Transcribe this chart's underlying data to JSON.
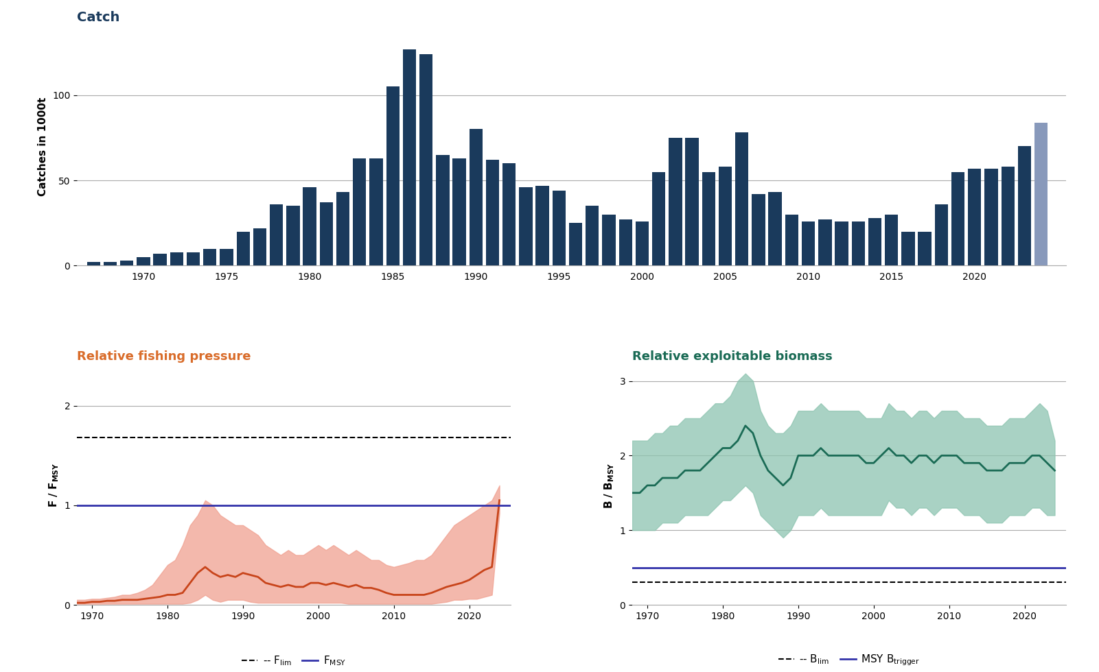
{
  "catch_years": [
    1967,
    1968,
    1969,
    1970,
    1971,
    1972,
    1973,
    1974,
    1975,
    1976,
    1977,
    1978,
    1979,
    1980,
    1981,
    1982,
    1983,
    1984,
    1985,
    1986,
    1987,
    1988,
    1989,
    1990,
    1991,
    1992,
    1993,
    1994,
    1995,
    1996,
    1997,
    1998,
    1999,
    2000,
    2001,
    2002,
    2003,
    2004,
    2005,
    2006,
    2007,
    2008,
    2009,
    2010,
    2011,
    2012,
    2013,
    2014,
    2015,
    2016,
    2017,
    2018,
    2019,
    2020,
    2021,
    2022,
    2023,
    2024
  ],
  "catch_values": [
    2,
    2,
    3,
    5,
    7,
    8,
    8,
    10,
    10,
    20,
    22,
    36,
    35,
    46,
    37,
    43,
    63,
    63,
    105,
    127,
    124,
    65,
    63,
    80,
    62,
    60,
    46,
    47,
    44,
    25,
    35,
    30,
    27,
    26,
    55,
    75,
    75,
    55,
    58,
    78,
    42,
    43,
    30,
    26,
    27,
    26,
    26,
    28,
    30,
    20,
    20,
    36,
    55,
    57,
    57,
    58,
    70,
    84
  ],
  "catch_bar_color": "#1a3a5c",
  "catch_bar_color_last": "#8899bb",
  "catch_title": "Catch",
  "catch_title_color": "#1a3a5c",
  "catch_ylabel": "Catches in 1000t",
  "catch_ylim": [
    0,
    140
  ],
  "catch_yticks": [
    0,
    50,
    100
  ],
  "f_years": [
    1968,
    1969,
    1970,
    1971,
    1972,
    1973,
    1974,
    1975,
    1976,
    1977,
    1978,
    1979,
    1980,
    1981,
    1982,
    1983,
    1984,
    1985,
    1986,
    1987,
    1988,
    1989,
    1990,
    1991,
    1992,
    1993,
    1994,
    1995,
    1996,
    1997,
    1998,
    1999,
    2000,
    2001,
    2002,
    2003,
    2004,
    2005,
    2006,
    2007,
    2008,
    2009,
    2010,
    2011,
    2012,
    2013,
    2014,
    2015,
    2016,
    2017,
    2018,
    2019,
    2020,
    2021,
    2022,
    2023,
    2024
  ],
  "f_mean": [
    0.02,
    0.02,
    0.03,
    0.03,
    0.04,
    0.04,
    0.05,
    0.05,
    0.05,
    0.06,
    0.07,
    0.08,
    0.1,
    0.1,
    0.12,
    0.22,
    0.32,
    0.38,
    0.32,
    0.28,
    0.3,
    0.28,
    0.32,
    0.3,
    0.28,
    0.22,
    0.2,
    0.18,
    0.2,
    0.18,
    0.18,
    0.22,
    0.22,
    0.2,
    0.22,
    0.2,
    0.18,
    0.2,
    0.17,
    0.17,
    0.15,
    0.12,
    0.1,
    0.1,
    0.1,
    0.1,
    0.1,
    0.12,
    0.15,
    0.18,
    0.2,
    0.22,
    0.25,
    0.3,
    0.35,
    0.38,
    1.05
  ],
  "f_upper": [
    0.05,
    0.05,
    0.06,
    0.06,
    0.07,
    0.08,
    0.1,
    0.1,
    0.12,
    0.15,
    0.2,
    0.3,
    0.4,
    0.45,
    0.6,
    0.8,
    0.9,
    1.05,
    1.0,
    0.9,
    0.85,
    0.8,
    0.8,
    0.75,
    0.7,
    0.6,
    0.55,
    0.5,
    0.55,
    0.5,
    0.5,
    0.55,
    0.6,
    0.55,
    0.6,
    0.55,
    0.5,
    0.55,
    0.5,
    0.45,
    0.45,
    0.4,
    0.38,
    0.4,
    0.42,
    0.45,
    0.45,
    0.5,
    0.6,
    0.7,
    0.8,
    0.85,
    0.9,
    0.95,
    1.0,
    1.05,
    1.2
  ],
  "f_lower": [
    0.01,
    0.01,
    0.01,
    0.01,
    0.01,
    0.01,
    0.01,
    0.01,
    0.01,
    0.01,
    0.01,
    0.01,
    0.01,
    0.01,
    0.01,
    0.02,
    0.05,
    0.1,
    0.05,
    0.03,
    0.05,
    0.05,
    0.05,
    0.03,
    0.02,
    0.02,
    0.02,
    0.02,
    0.02,
    0.02,
    0.02,
    0.02,
    0.02,
    0.02,
    0.02,
    0.02,
    0.01,
    0.01,
    0.01,
    0.01,
    0.01,
    0.01,
    0.01,
    0.01,
    0.01,
    0.01,
    0.01,
    0.01,
    0.02,
    0.03,
    0.05,
    0.05,
    0.06,
    0.06,
    0.08,
    0.1,
    0.92
  ],
  "f_title": "Relative fishing pressure",
  "f_title_color": "#d96c2a",
  "f_ylabel": "F / F_MSY",
  "f_flim": 1.68,
  "f_fmsy": 1.0,
  "f_ylim": [
    0,
    2.4
  ],
  "f_yticks": [
    0,
    1,
    2
  ],
  "f_line_color": "#c8441a",
  "f_fill_color": "#f0a090",
  "b_years": [
    1968,
    1969,
    1970,
    1971,
    1972,
    1973,
    1974,
    1975,
    1976,
    1977,
    1978,
    1979,
    1980,
    1981,
    1982,
    1983,
    1984,
    1985,
    1986,
    1987,
    1988,
    1989,
    1990,
    1991,
    1992,
    1993,
    1994,
    1995,
    1996,
    1997,
    1998,
    1999,
    2000,
    2001,
    2002,
    2003,
    2004,
    2005,
    2006,
    2007,
    2008,
    2009,
    2010,
    2011,
    2012,
    2013,
    2014,
    2015,
    2016,
    2017,
    2018,
    2019,
    2020,
    2021,
    2022,
    2023,
    2024
  ],
  "b_mean": [
    1.5,
    1.5,
    1.6,
    1.6,
    1.7,
    1.7,
    1.7,
    1.8,
    1.8,
    1.8,
    1.9,
    2.0,
    2.1,
    2.1,
    2.2,
    2.4,
    2.3,
    2.0,
    1.8,
    1.7,
    1.6,
    1.7,
    2.0,
    2.0,
    2.0,
    2.1,
    2.0,
    2.0,
    2.0,
    2.0,
    2.0,
    1.9,
    1.9,
    2.0,
    2.1,
    2.0,
    2.0,
    1.9,
    2.0,
    2.0,
    1.9,
    2.0,
    2.0,
    2.0,
    1.9,
    1.9,
    1.9,
    1.8,
    1.8,
    1.8,
    1.9,
    1.9,
    1.9,
    2.0,
    2.0,
    1.9,
    1.8
  ],
  "b_upper": [
    2.2,
    2.2,
    2.2,
    2.3,
    2.3,
    2.4,
    2.4,
    2.5,
    2.5,
    2.5,
    2.6,
    2.7,
    2.7,
    2.8,
    3.0,
    3.1,
    3.0,
    2.6,
    2.4,
    2.3,
    2.3,
    2.4,
    2.6,
    2.6,
    2.6,
    2.7,
    2.6,
    2.6,
    2.6,
    2.6,
    2.6,
    2.5,
    2.5,
    2.5,
    2.7,
    2.6,
    2.6,
    2.5,
    2.6,
    2.6,
    2.5,
    2.6,
    2.6,
    2.6,
    2.5,
    2.5,
    2.5,
    2.4,
    2.4,
    2.4,
    2.5,
    2.5,
    2.5,
    2.6,
    2.7,
    2.6,
    2.2
  ],
  "b_lower": [
    1.0,
    1.0,
    1.0,
    1.0,
    1.1,
    1.1,
    1.1,
    1.2,
    1.2,
    1.2,
    1.2,
    1.3,
    1.4,
    1.4,
    1.5,
    1.6,
    1.5,
    1.2,
    1.1,
    1.0,
    0.9,
    1.0,
    1.2,
    1.2,
    1.2,
    1.3,
    1.2,
    1.2,
    1.2,
    1.2,
    1.2,
    1.2,
    1.2,
    1.2,
    1.4,
    1.3,
    1.3,
    1.2,
    1.3,
    1.3,
    1.2,
    1.3,
    1.3,
    1.3,
    1.2,
    1.2,
    1.2,
    1.1,
    1.1,
    1.1,
    1.2,
    1.2,
    1.2,
    1.3,
    1.3,
    1.2,
    1.2
  ],
  "b_title": "Relative exploitable biomass",
  "b_title_color": "#1a6b55",
  "b_ylabel": "B / B_MSY",
  "b_blim": 0.3,
  "b_btrigger": 0.5,
  "b_ylim": [
    0,
    3.2
  ],
  "b_yticks": [
    0,
    1,
    2,
    3
  ],
  "b_line_color": "#1a6b55",
  "b_fill_color": "#8dc4b0",
  "blue_line_color": "#3333aa",
  "bg_color": "#ffffff",
  "grid_color": "#aaaaaa",
  "legend_fontsize": 11
}
